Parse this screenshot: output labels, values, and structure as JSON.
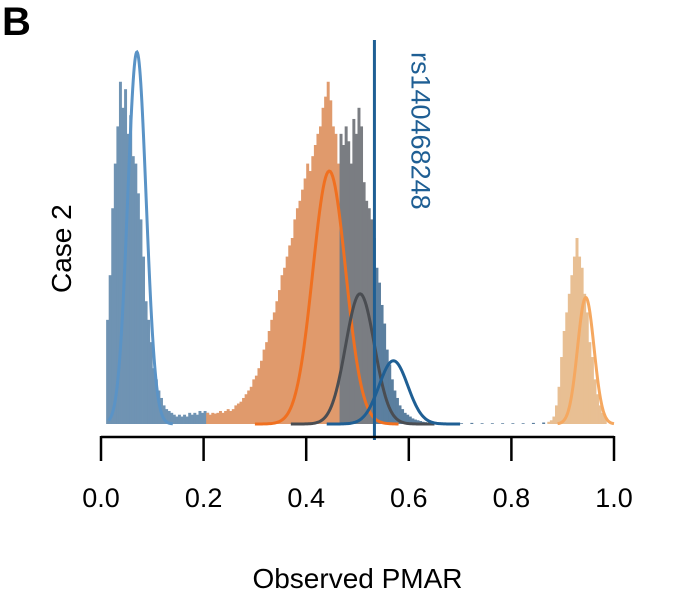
{
  "panel_label": "B",
  "chart_data": {
    "type": "histogram",
    "title": "",
    "xlabel": "Observed PMAR",
    "ylabel": "Case 2",
    "xlim": [
      0.0,
      1.0
    ],
    "xticks": [
      "0.0",
      "0.2",
      "0.4",
      "0.6",
      "0.8",
      "1.0"
    ],
    "grid": false,
    "legend": "none",
    "marker": {
      "label": "rs140468248",
      "x": 0.533,
      "color": "#1f5f94"
    },
    "histograms": [
      {
        "color": "#6f93b3",
        "bins": [
          [
            0.01,
            0.28
          ],
          [
            0.015,
            0.4
          ],
          [
            0.02,
            0.58
          ],
          [
            0.025,
            0.7
          ],
          [
            0.03,
            0.8
          ],
          [
            0.035,
            0.92
          ],
          [
            0.04,
            0.85
          ],
          [
            0.045,
            0.9
          ],
          [
            0.05,
            0.78
          ],
          [
            0.055,
            0.83
          ],
          [
            0.06,
            0.72
          ],
          [
            0.065,
            0.7
          ],
          [
            0.07,
            0.62
          ],
          [
            0.075,
            0.55
          ],
          [
            0.08,
            0.45
          ],
          [
            0.085,
            0.33
          ],
          [
            0.09,
            0.28
          ],
          [
            0.095,
            0.22
          ],
          [
            0.1,
            0.15
          ],
          [
            0.105,
            0.12
          ],
          [
            0.11,
            0.09
          ],
          [
            0.115,
            0.07
          ],
          [
            0.12,
            0.05
          ],
          [
            0.125,
            0.04
          ],
          [
            0.13,
            0.035
          ],
          [
            0.135,
            0.03
          ],
          [
            0.14,
            0.025
          ],
          [
            0.145,
            0.02
          ],
          [
            0.15,
            0.025
          ],
          [
            0.155,
            0.02
          ],
          [
            0.16,
            0.025
          ],
          [
            0.165,
            0.02
          ],
          [
            0.17,
            0.03
          ],
          [
            0.175,
            0.025
          ],
          [
            0.18,
            0.03
          ],
          [
            0.185,
            0.025
          ],
          [
            0.19,
            0.035
          ],
          [
            0.195,
            0.03
          ],
          [
            0.2,
            0.035
          ],
          [
            0.205,
            0.03
          ]
        ]
      },
      {
        "color": "#e09a6c",
        "bins": [
          [
            0.205,
            0.03
          ],
          [
            0.21,
            0.025
          ],
          [
            0.215,
            0.03
          ],
          [
            0.22,
            0.028
          ],
          [
            0.225,
            0.03
          ],
          [
            0.23,
            0.035
          ],
          [
            0.235,
            0.03
          ],
          [
            0.24,
            0.035
          ],
          [
            0.245,
            0.04
          ],
          [
            0.25,
            0.035
          ],
          [
            0.255,
            0.04
          ],
          [
            0.26,
            0.05
          ],
          [
            0.265,
            0.055
          ],
          [
            0.27,
            0.06
          ],
          [
            0.275,
            0.07
          ],
          [
            0.28,
            0.08
          ],
          [
            0.285,
            0.09
          ],
          [
            0.29,
            0.1
          ],
          [
            0.295,
            0.12
          ],
          [
            0.3,
            0.13
          ],
          [
            0.305,
            0.15
          ],
          [
            0.31,
            0.17
          ],
          [
            0.315,
            0.2
          ],
          [
            0.32,
            0.22
          ],
          [
            0.325,
            0.25
          ],
          [
            0.33,
            0.28
          ],
          [
            0.335,
            0.3
          ],
          [
            0.34,
            0.33
          ],
          [
            0.345,
            0.36
          ],
          [
            0.35,
            0.4
          ],
          [
            0.355,
            0.42
          ],
          [
            0.36,
            0.45
          ],
          [
            0.365,
            0.48
          ],
          [
            0.37,
            0.5
          ],
          [
            0.375,
            0.55
          ],
          [
            0.38,
            0.58
          ],
          [
            0.385,
            0.6
          ],
          [
            0.39,
            0.63
          ],
          [
            0.395,
            0.66
          ],
          [
            0.4,
            0.7
          ],
          [
            0.405,
            0.68
          ],
          [
            0.41,
            0.72
          ],
          [
            0.415,
            0.75
          ],
          [
            0.42,
            0.78
          ],
          [
            0.425,
            0.8
          ],
          [
            0.43,
            0.85
          ],
          [
            0.435,
            0.88
          ],
          [
            0.44,
            0.92
          ],
          [
            0.445,
            0.87
          ],
          [
            0.45,
            0.8
          ],
          [
            0.455,
            0.78
          ],
          [
            0.46,
            0.7
          ],
          [
            0.465,
            0.6
          ]
        ]
      },
      {
        "color": "#7a7d82",
        "bins": [
          [
            0.465,
            0.78
          ],
          [
            0.47,
            0.75
          ],
          [
            0.475,
            0.8
          ],
          [
            0.48,
            0.76
          ],
          [
            0.485,
            0.7
          ],
          [
            0.49,
            0.82
          ],
          [
            0.495,
            0.78
          ],
          [
            0.5,
            0.85
          ],
          [
            0.505,
            0.8
          ],
          [
            0.51,
            0.65
          ],
          [
            0.515,
            0.6
          ],
          [
            0.52,
            0.58
          ],
          [
            0.525,
            0.55
          ],
          [
            0.53,
            0.5
          ]
        ]
      },
      {
        "color": "#5b7f9f",
        "bins": [
          [
            0.535,
            0.42
          ],
          [
            0.54,
            0.38
          ],
          [
            0.545,
            0.32
          ],
          [
            0.55,
            0.27
          ],
          [
            0.555,
            0.2
          ],
          [
            0.56,
            0.16
          ],
          [
            0.565,
            0.12
          ],
          [
            0.57,
            0.09
          ],
          [
            0.575,
            0.07
          ],
          [
            0.58,
            0.05
          ],
          [
            0.585,
            0.04
          ],
          [
            0.59,
            0.03
          ],
          [
            0.595,
            0.025
          ],
          [
            0.6,
            0.02
          ],
          [
            0.605,
            0.015
          ],
          [
            0.61,
            0.012
          ],
          [
            0.615,
            0.01
          ],
          [
            0.62,
            0.008
          ],
          [
            0.625,
            0.006
          ],
          [
            0.63,
            0.005
          ],
          [
            0.635,
            0.004
          ],
          [
            0.64,
            0.004
          ],
          [
            0.645,
            0.003
          ],
          [
            0.65,
            0.003
          ],
          [
            0.66,
            0.003
          ],
          [
            0.67,
            0.002
          ],
          [
            0.68,
            0.003
          ],
          [
            0.69,
            0.002
          ],
          [
            0.7,
            0.002
          ],
          [
            0.72,
            0.003
          ],
          [
            0.74,
            0.002
          ],
          [
            0.76,
            0.002
          ],
          [
            0.78,
            0.002
          ],
          [
            0.8,
            0.002
          ],
          [
            0.82,
            0.002
          ],
          [
            0.84,
            0.003
          ],
          [
            0.86,
            0.004
          ]
        ]
      },
      {
        "color": "#e8bf93",
        "bins": [
          [
            0.87,
            0.006
          ],
          [
            0.875,
            0.01
          ],
          [
            0.88,
            0.02
          ],
          [
            0.885,
            0.05
          ],
          [
            0.89,
            0.1
          ],
          [
            0.895,
            0.18
          ],
          [
            0.9,
            0.25
          ],
          [
            0.905,
            0.3
          ],
          [
            0.91,
            0.35
          ],
          [
            0.915,
            0.4
          ],
          [
            0.92,
            0.45
          ],
          [
            0.925,
            0.5
          ],
          [
            0.93,
            0.45
          ],
          [
            0.935,
            0.42
          ],
          [
            0.94,
            0.35
          ],
          [
            0.945,
            0.3
          ],
          [
            0.95,
            0.22
          ],
          [
            0.955,
            0.18
          ],
          [
            0.96,
            0.12
          ],
          [
            0.965,
            0.08
          ],
          [
            0.97,
            0.05
          ],
          [
            0.975,
            0.03
          ],
          [
            0.98,
            0.02
          ]
        ]
      }
    ],
    "bin_width": 0.005,
    "curves": [
      {
        "color": "#5a93c6",
        "mean": 0.07,
        "sd": 0.018,
        "peak": 1.0,
        "range": [
          0.015,
          0.14
        ]
      },
      {
        "color": "#f07020",
        "mean": 0.445,
        "sd": 0.032,
        "peak": 0.68,
        "range": [
          0.3,
          0.58
        ]
      },
      {
        "color": "#4a4d52",
        "mean": 0.505,
        "sd": 0.028,
        "peak": 0.35,
        "range": [
          0.37,
          0.65
        ]
      },
      {
        "color": "#1f5f94",
        "mean": 0.57,
        "sd": 0.028,
        "peak": 0.17,
        "range": [
          0.44,
          0.7
        ]
      },
      {
        "color": "#f5a860",
        "mean": 0.945,
        "sd": 0.016,
        "peak": 0.34,
        "range": [
          0.89,
          1.0
        ]
      }
    ]
  }
}
